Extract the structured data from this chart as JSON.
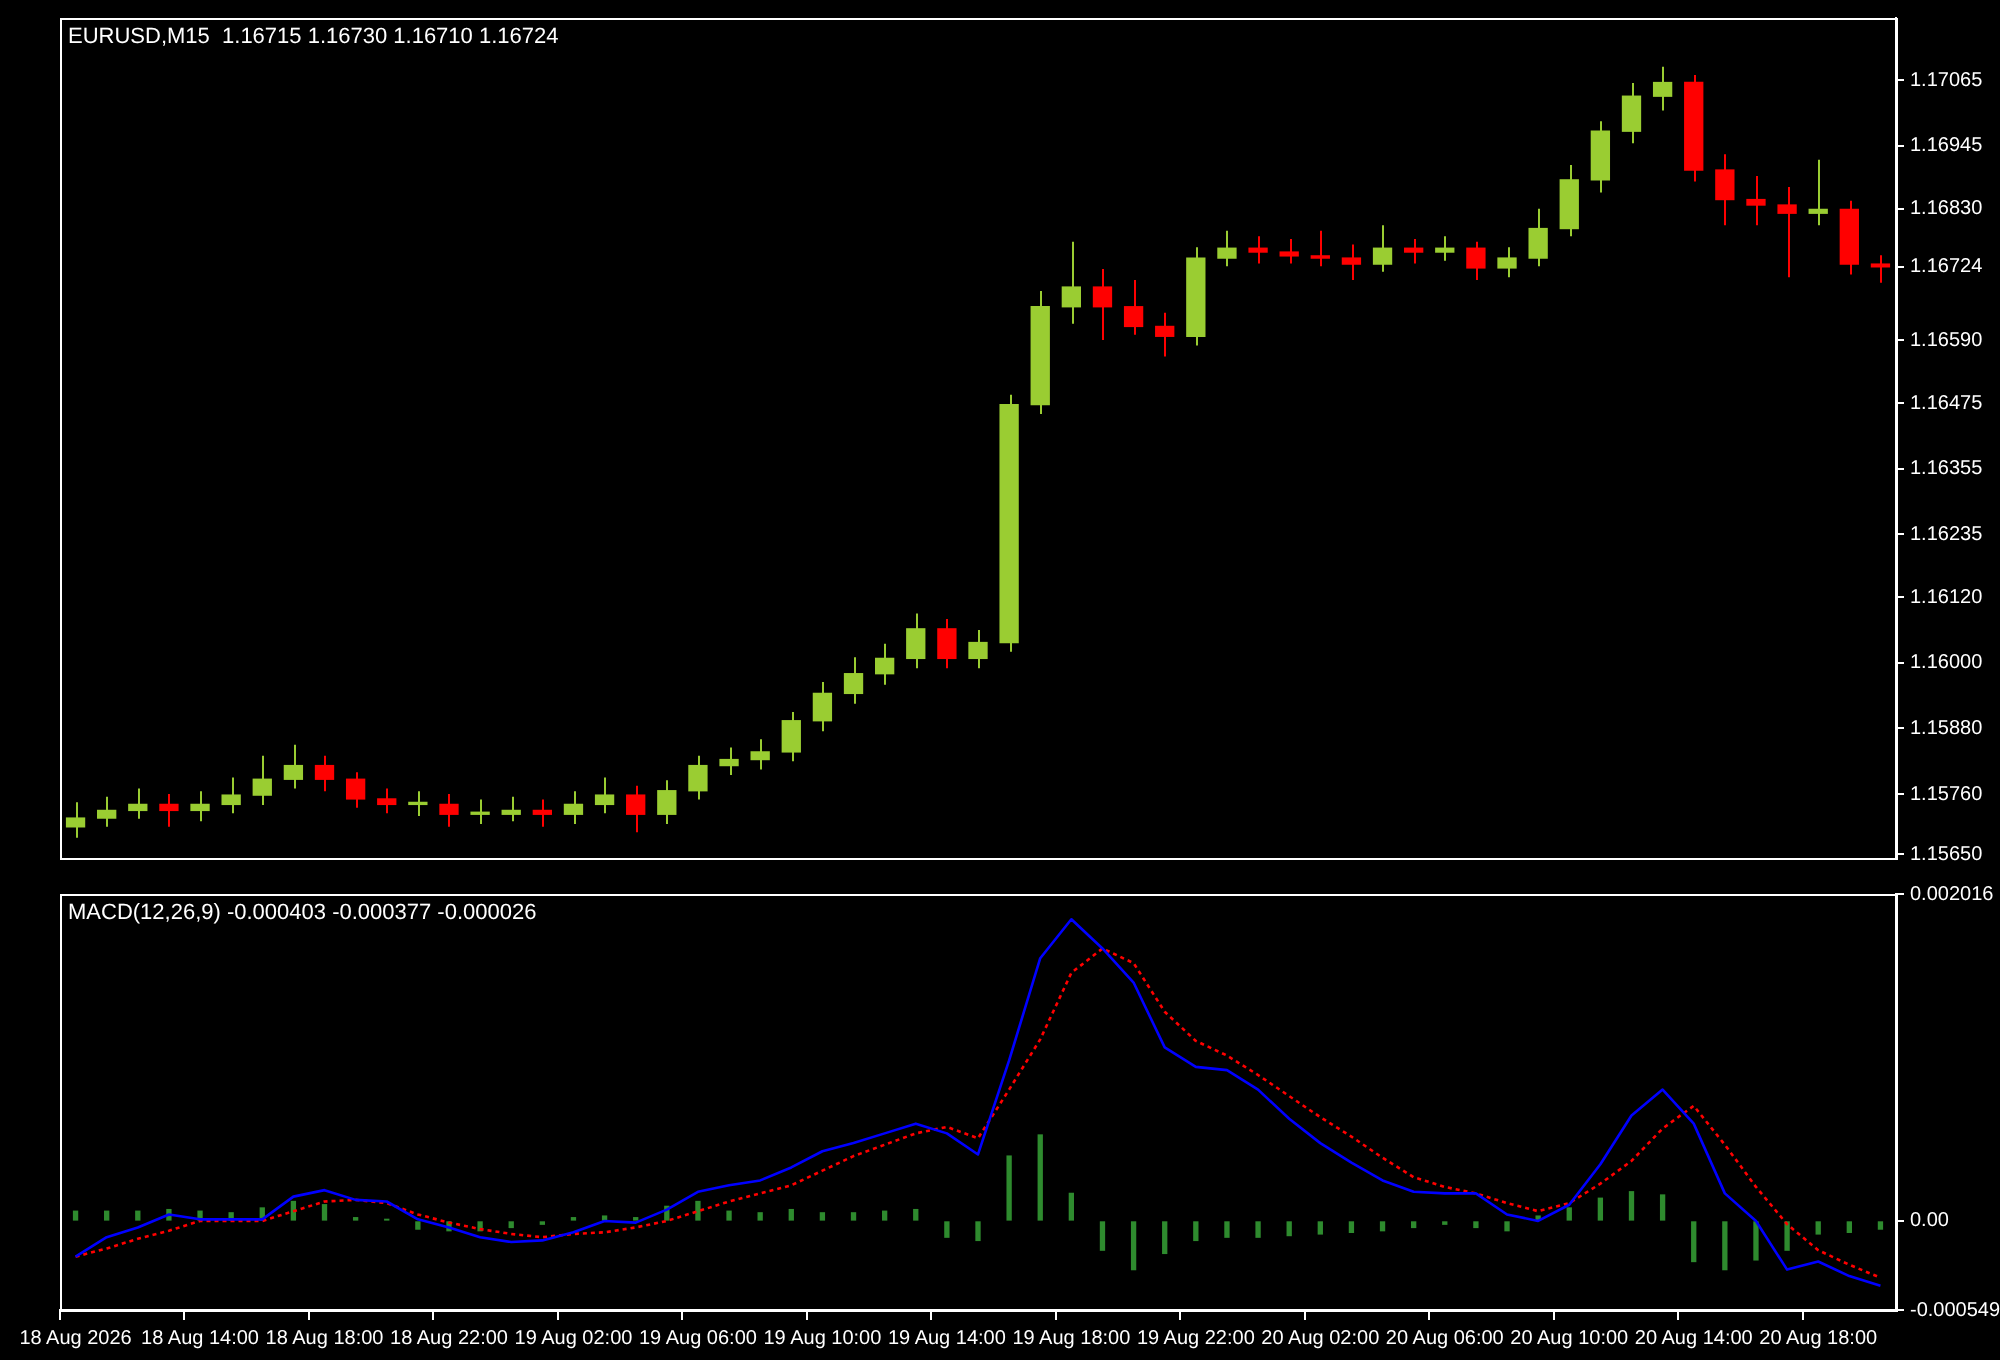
{
  "chart_data": [
    {
      "type": "candlestick",
      "title": "EURUSD,M15  1.16715 1.16730 1.16710 1.16724",
      "tick_labels": "y",
      "grid": false,
      "legend": false,
      "categories": [
        null,
        null,
        null,
        null,
        null,
        null,
        null,
        null,
        null,
        null,
        null,
        null,
        null,
        null,
        null,
        null,
        null,
        null,
        null,
        null,
        null,
        null,
        null,
        null,
        null,
        null,
        null,
        null,
        null,
        null,
        null,
        null,
        null,
        null,
        null,
        null,
        null,
        null,
        null,
        null,
        null,
        null,
        null,
        null,
        null,
        null,
        null,
        null,
        null,
        null,
        null,
        null,
        null,
        null,
        null,
        null,
        null,
        null,
        null
      ],
      "ylim": [
        1.15643,
        1.17179
      ],
      "yticks": [
        1.17065,
        1.16945,
        {
          "value": 1.1683,
          "label": "1.16830"
        },
        1.16724,
        {
          "value": 1.1659,
          "label": "1.16590"
        },
        1.16475,
        1.16355,
        1.16235,
        {
          "value": 1.1612,
          "label": "1.16120"
        },
        {
          "value": 1.16,
          "label": "1.16000"
        },
        {
          "value": 1.1588,
          "label": "1.15880"
        },
        {
          "value": 1.1576,
          "label": "1.15760"
        },
        {
          "value": 1.1565,
          "label": "1.15650"
        }
      ],
      "ohlc": [
        [
          1.157,
          1.15745,
          1.1568,
          1.15716
        ],
        [
          1.15716,
          1.15755,
          1.157,
          1.1573
        ],
        [
          1.1573,
          1.1577,
          1.15715,
          1.15741
        ],
        [
          1.15741,
          1.1576,
          1.157,
          1.1573
        ],
        [
          1.1573,
          1.15765,
          1.1571,
          1.15741
        ],
        [
          1.15741,
          1.1579,
          1.15725,
          1.15758
        ],
        [
          1.15758,
          1.1583,
          1.1574,
          1.15787
        ],
        [
          1.15787,
          1.1585,
          1.1577,
          1.15812
        ],
        [
          1.15812,
          1.1583,
          1.15765,
          1.15787
        ],
        [
          1.15787,
          1.158,
          1.15735,
          1.15751
        ],
        [
          1.15751,
          1.1577,
          1.15725,
          1.15741
        ],
        [
          1.15741,
          1.15765,
          1.1572,
          1.15741
        ],
        [
          1.15741,
          1.1576,
          1.157,
          1.15723
        ],
        [
          1.15723,
          1.1575,
          1.15705,
          1.15723
        ],
        [
          1.15723,
          1.15755,
          1.1571,
          1.1573
        ],
        [
          1.1573,
          1.1575,
          1.157,
          1.15723
        ],
        [
          1.15723,
          1.15765,
          1.15705,
          1.15741
        ],
        [
          1.15741,
          1.1579,
          1.15725,
          1.15758
        ],
        [
          1.15758,
          1.15775,
          1.1569,
          1.15723
        ],
        [
          1.15723,
          1.15785,
          1.15705,
          1.15766
        ],
        [
          1.15766,
          1.1583,
          1.1575,
          1.15812
        ],
        [
          1.15812,
          1.15845,
          1.15795,
          1.15823
        ],
        [
          1.15823,
          1.1586,
          1.15805,
          1.15837
        ],
        [
          1.15837,
          1.1591,
          1.1582,
          1.15894
        ],
        [
          1.15894,
          1.15965,
          1.15875,
          1.15944
        ],
        [
          1.15944,
          1.1601,
          1.15925,
          1.1598
        ],
        [
          1.1598,
          1.16035,
          1.1596,
          1.16008
        ],
        [
          1.16008,
          1.1609,
          1.1599,
          1.16062
        ],
        [
          1.16062,
          1.1608,
          1.1599,
          1.16008
        ],
        [
          1.16008,
          1.1606,
          1.1599,
          1.16037
        ],
        [
          1.16037,
          1.1649,
          1.1602,
          1.16472
        ],
        [
          1.16472,
          1.1668,
          1.16455,
          1.16651
        ],
        [
          1.16651,
          1.1677,
          1.1662,
          1.16687
        ],
        [
          1.16687,
          1.1672,
          1.1659,
          1.16651
        ],
        [
          1.16651,
          1.167,
          1.166,
          1.16615
        ],
        [
          1.16615,
          1.1664,
          1.1656,
          1.16597
        ],
        [
          1.16597,
          1.1676,
          1.1658,
          1.1674
        ],
        [
          1.1674,
          1.1679,
          1.16725,
          1.16758
        ],
        [
          1.16758,
          1.1678,
          1.1673,
          1.16751
        ],
        [
          1.16751,
          1.16775,
          1.1673,
          1.16744
        ],
        [
          1.16744,
          1.1679,
          1.16725,
          1.1674
        ],
        [
          1.1674,
          1.16765,
          1.167,
          1.16729
        ],
        [
          1.16729,
          1.168,
          1.16715,
          1.16758
        ],
        [
          1.16758,
          1.16775,
          1.1673,
          1.16751
        ],
        [
          1.16751,
          1.1678,
          1.16735,
          1.16758
        ],
        [
          1.16758,
          1.1677,
          1.167,
          1.16722
        ],
        [
          1.16722,
          1.1676,
          1.16705,
          1.1674
        ],
        [
          1.1674,
          1.1683,
          1.16725,
          1.16794
        ],
        [
          1.16794,
          1.1691,
          1.1678,
          1.16883
        ],
        [
          1.16883,
          1.1699,
          1.1686,
          1.16972
        ],
        [
          1.16972,
          1.1706,
          1.1695,
          1.17036
        ],
        [
          1.17036,
          1.1709,
          1.1701,
          1.17061
        ],
        [
          1.17061,
          1.17075,
          1.1688,
          1.16901
        ],
        [
          1.16901,
          1.1693,
          1.168,
          1.16847
        ],
        [
          1.16847,
          1.1689,
          1.168,
          1.16837
        ],
        [
          1.16837,
          1.1687,
          1.16705,
          1.16822
        ],
        [
          1.16822,
          1.1692,
          1.168,
          1.16829
        ],
        [
          1.16829,
          1.16845,
          1.1671,
          1.16729
        ],
        [
          1.16729,
          1.16745,
          1.16695,
          1.16724
        ]
      ],
      "colors": [
        "#9acd32",
        "#9acd32",
        "#9acd32",
        "#ff0000",
        "#9acd32",
        "#9acd32",
        "#9acd32",
        "#9acd32",
        "#ff0000",
        "#ff0000",
        "#ff0000",
        "#9acd32",
        "#ff0000",
        "#9acd32",
        "#9acd32",
        "#ff0000",
        "#9acd32",
        "#9acd32",
        "#ff0000",
        "#9acd32",
        "#9acd32",
        "#9acd32",
        "#9acd32",
        "#9acd32",
        "#9acd32",
        "#9acd32",
        "#9acd32",
        "#9acd32",
        "#ff0000",
        "#9acd32",
        "#9acd32",
        "#9acd32",
        "#9acd32",
        "#ff0000",
        "#ff0000",
        "#ff0000",
        "#9acd32",
        "#9acd32",
        "#ff0000",
        "#ff0000",
        "#ff0000",
        "#ff0000",
        "#9acd32",
        "#ff0000",
        "#9acd32",
        "#ff0000",
        "#9acd32",
        "#9acd32",
        "#9acd32",
        "#9acd32",
        "#9acd32",
        "#9acd32",
        "#ff0000",
        "#ff0000",
        "#ff0000",
        "#ff0000",
        "#9acd32",
        "#ff0000",
        "#ff0000"
      ]
    },
    {
      "type": "line",
      "title": "MACD(12,26,9) -0.000403 -0.000377 -0.000026",
      "grid": false,
      "legend": false,
      "marker": "none",
      "categories": [
        "18 Aug 2026",
        null,
        null,
        null,
        "18 Aug 14:00",
        null,
        null,
        null,
        "18 Aug 18:00",
        null,
        null,
        null,
        "18 Aug 22:00",
        null,
        null,
        null,
        "19 Aug 02:00",
        null,
        null,
        null,
        "19 Aug 06:00",
        null,
        null,
        null,
        "19 Aug 10:00",
        null,
        null,
        null,
        "19 Aug 14:00",
        null,
        null,
        null,
        "19 Aug 18:00",
        null,
        null,
        null,
        "19 Aug 22:00",
        null,
        null,
        null,
        "20 Aug 02:00",
        null,
        null,
        null,
        "20 Aug 06:00",
        null,
        null,
        null,
        "20 Aug 10:00",
        null,
        null,
        null,
        "20 Aug 14:00",
        null,
        null,
        null,
        "20 Aug 18:00",
        null,
        null
      ],
      "ylim": [
        -0.000549,
        0.002016
      ],
      "yticks": [
        0.002016,
        {
          "value": 0,
          "label": "0.00"
        },
        -0.000549
      ],
      "series": [
        {
          "type": "bar",
          "color": "#2e8b2e",
          "values": [
            6e-05,
            6e-05,
            6e-05,
            7e-05,
            6e-05,
            5e-05,
            8e-05,
            0.00012,
            0.0001,
            2e-05,
            1e-05,
            -5e-05,
            -6e-05,
            -6e-05,
            -4e-05,
            -2e-05,
            2e-05,
            3e-05,
            2e-05,
            9e-05,
            0.00012,
            6e-05,
            5e-05,
            7e-05,
            5e-05,
            5e-05,
            6e-05,
            7e-05,
            -0.0001,
            -0.00012,
            0.0004,
            0.00053,
            0.00017,
            -0.00018,
            -0.0003,
            -0.0002,
            -0.00012,
            -0.0001,
            -0.0001,
            -9e-05,
            -8e-05,
            -7e-05,
            -6e-05,
            -4e-05,
            -2e-05,
            -4e-05,
            -6e-05,
            3e-05,
            8e-05,
            0.00014,
            0.00018,
            0.00016,
            -0.00025,
            -0.0003,
            -0.00024,
            -0.00018,
            -8e-05,
            -7e-05,
            -5e-05
          ]
        },
        {
          "type": "line",
          "color": "#0000ff",
          "values": [
            -0.00022,
            -0.0001,
            -4e-05,
            4e-05,
            1e-05,
            1e-05,
            1e-05,
            0.00015,
            0.00019,
            0.00013,
            0.00012,
            1e-05,
            -4e-05,
            -0.0001,
            -0.00013,
            -0.00012,
            -7e-05,
            0,
            -1e-05,
            7e-05,
            0.00018,
            0.00022,
            0.00025,
            0.00033,
            0.00043,
            0.00048,
            0.00054,
            0.0006,
            0.00054,
            0.00041,
            0.00099,
            0.00162,
            0.00186,
            0.00168,
            0.00147,
            0.00107,
            0.00095,
            0.00093,
            0.00081,
            0.00063,
            0.00048,
            0.00036,
            0.00025,
            0.00018,
            0.00017,
            0.00017,
            4e-05,
            0,
            0.0001,
            0.00035,
            0.00065,
            0.00081,
            0.0006,
            0.00017,
            0,
            -0.0003,
            -0.00025,
            -0.00034,
            -0.0004
          ]
        },
        {
          "type": "line",
          "color": "#ff0000",
          "line_style": "dotted",
          "values": [
            -0.00022,
            -0.00017,
            -0.00011,
            -6e-05,
            0,
            0,
            0,
            6e-05,
            0.00012,
            0.00013,
            0.00011,
            4e-05,
            -1e-05,
            -5e-05,
            -8e-05,
            -0.0001,
            -8e-05,
            -7e-05,
            -4e-05,
            0,
            6e-05,
            0.00012,
            0.00017,
            0.00022,
            0.00031,
            0.0004,
            0.00047,
            0.00054,
            0.00058,
            0.00051,
            0.00081,
            0.00112,
            0.00153,
            0.00168,
            0.00159,
            0.00129,
            0.00111,
            0.00102,
            0.0009,
            0.00077,
            0.00064,
            0.00052,
            0.00039,
            0.00027,
            0.00021,
            0.00017,
            0.00011,
            6e-05,
            0.00011,
            0.00023,
            0.00037,
            0.00057,
            0.00071,
            0.00047,
            0.00021,
            -2e-05,
            -0.00018,
            -0.00027,
            -0.00035
          ]
        }
      ]
    }
  ]
}
